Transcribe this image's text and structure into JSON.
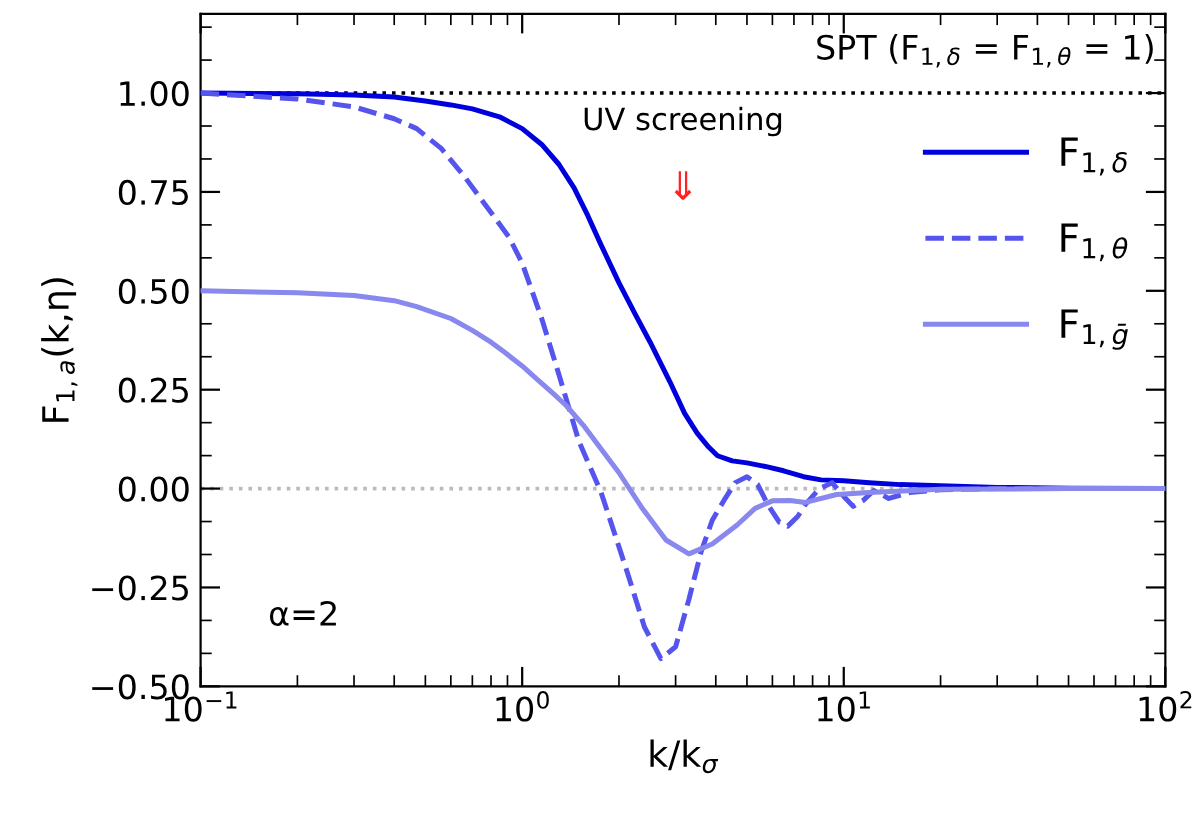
{
  "chart_data": {
    "type": "line",
    "xlabel": "k/k$_{σ}$",
    "ylabel": "F$_{1,a}$(k,η)",
    "log": "x",
    "xlim": [
      0.1,
      100
    ],
    "xticks": [
      {
        "value": 0.1,
        "label": "10$^{−1}$"
      },
      {
        "value": 1,
        "label": "10$^{0}$"
      },
      {
        "value": 10,
        "label": "10$^{1}$"
      },
      {
        "value": 100,
        "label": "10$^{2}$"
      }
    ],
    "ylim": [
      -0.5,
      1.2
    ],
    "yticks": [
      {
        "value": -0.5,
        "label": "−0.50"
      },
      {
        "value": -0.25,
        "label": "−0.25"
      },
      {
        "value": 0,
        "label": "0.00"
      },
      {
        "value": 0.25,
        "label": "0.25"
      },
      {
        "value": 0.5,
        "label": "0.50"
      },
      {
        "value": 0.75,
        "label": "0.75"
      },
      {
        "value": 1,
        "label": "1.00"
      }
    ],
    "grid": false,
    "legend": "top right",
    "marker": "none",
    "series": [
      {
        "name": "F$_{1,δ}$",
        "color": "#0000dd",
        "line_style": "solid",
        "x": [
          0.1,
          0.2,
          0.3,
          0.4,
          0.5,
          0.6,
          0.7,
          0.85,
          1.0,
          1.15,
          1.3,
          1.45,
          1.6,
          1.75,
          2.0,
          2.25,
          2.5,
          2.88,
          3.2,
          3.5,
          3.8,
          4.05,
          4.5,
          5.0,
          5.7,
          6.5,
          7.5,
          8.5,
          10,
          12,
          15,
          20,
          30,
          50,
          100
        ],
        "values": [
          1.0,
          0.998,
          0.995,
          0.99,
          0.98,
          0.97,
          0.96,
          0.94,
          0.91,
          0.87,
          0.82,
          0.76,
          0.69,
          0.62,
          0.52,
          0.44,
          0.37,
          0.27,
          0.19,
          0.14,
          0.105,
          0.083,
          0.07,
          0.065,
          0.056,
          0.045,
          0.03,
          0.022,
          0.02,
          0.015,
          0.01,
          0.007,
          0.003,
          0.001,
          0.0
        ]
      },
      {
        "name": "F$_{1,θ}$",
        "color": "#5555ee",
        "line_style": "dashed",
        "x": [
          0.1,
          0.2,
          0.3,
          0.4,
          0.47,
          0.56,
          0.66,
          0.78,
          0.91,
          1.0,
          1.15,
          1.31,
          1.5,
          1.76,
          2.1,
          2.4,
          2.7,
          3.0,
          3.3,
          3.6,
          3.9,
          4.24,
          4.6,
          5.0,
          5.4,
          5.8,
          6.3,
          6.7,
          7.2,
          7.6,
          8.4,
          9.2,
          10,
          10.7,
          11.5,
          12.4,
          13.8,
          16,
          20,
          30,
          50,
          100
        ],
        "values": [
          1.0,
          0.985,
          0.965,
          0.935,
          0.91,
          0.86,
          0.79,
          0.71,
          0.636,
          0.57,
          0.43,
          0.28,
          0.12,
          -0.01,
          -0.2,
          -0.35,
          -0.43,
          -0.4,
          -0.28,
          -0.16,
          -0.08,
          -0.03,
          0.015,
          0.03,
          0.01,
          -0.04,
          -0.085,
          -0.095,
          -0.07,
          -0.04,
          0.0,
          0.015,
          -0.02,
          -0.045,
          -0.03,
          -0.005,
          -0.025,
          -0.01,
          -0.003,
          0.0,
          0.0,
          0.0
        ]
      },
      {
        "name": "F$_{1,ḡ}$",
        "color": "#8888ee",
        "line_style": "solid",
        "x": [
          0.1,
          0.2,
          0.3,
          0.4,
          0.47,
          0.6,
          0.7,
          0.8,
          0.88,
          1.0,
          1.1,
          1.25,
          1.37,
          1.55,
          1.76,
          2.0,
          2.35,
          2.8,
          3.3,
          3.9,
          4.66,
          5.3,
          6.0,
          6.8,
          7.6,
          9.5,
          12,
          20,
          50,
          100
        ],
        "values": [
          0.5,
          0.495,
          0.488,
          0.475,
          0.46,
          0.43,
          0.4,
          0.37,
          0.345,
          0.31,
          0.28,
          0.24,
          0.21,
          0.16,
          0.1,
          0.04,
          -0.047,
          -0.13,
          -0.165,
          -0.14,
          -0.092,
          -0.05,
          -0.031,
          -0.03,
          -0.035,
          -0.015,
          -0.01,
          -0.002,
          0.0,
          0.0
        ]
      }
    ],
    "ref_lines": [
      {
        "axis": "y",
        "value": 1,
        "color": "#000000",
        "line_style": "dotted"
      },
      {
        "axis": "y",
        "value": 0,
        "color": "#bbbbbb",
        "line_style": "dotted"
      }
    ],
    "annotations": [
      "SPT (F$_{1,δ}$ = F$_{1,θ}$ = 1)",
      "UV screening",
      "⇓",
      "α=2"
    ]
  }
}
